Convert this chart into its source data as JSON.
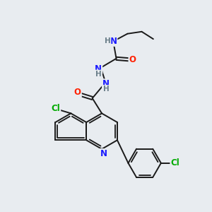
{
  "background_color": "#e8ecf0",
  "bond_color": "#1a1a1a",
  "bond_width": 1.4,
  "atom_colors": {
    "C": "#1a1a1a",
    "H": "#6b7f8a",
    "N": "#1a1aff",
    "O": "#ff2000",
    "Cl": "#00aa00"
  },
  "font_size": 8.5,
  "font_size_h": 7.5
}
